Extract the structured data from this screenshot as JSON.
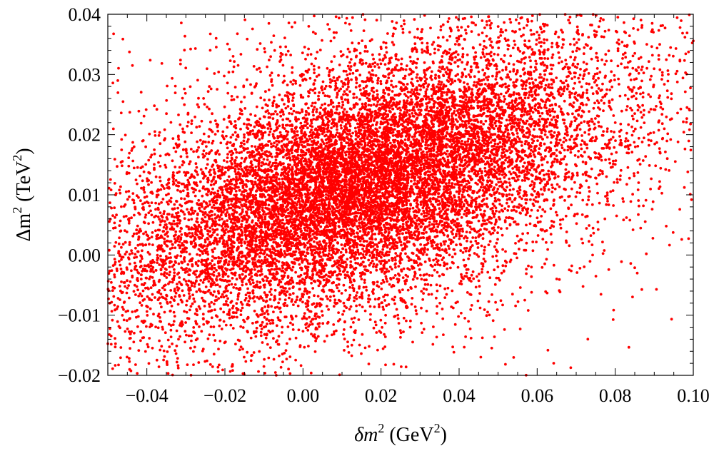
{
  "chart_data": {
    "type": "scatter",
    "title": "",
    "xlabel": {
      "base": "δm",
      "sup": "2",
      "unit_open": " (GeV",
      "unit_sup": "2",
      "unit_close": ")"
    },
    "ylabel": {
      "base": "Δm",
      "sup": "2",
      "unit_open": "  (TeV",
      "unit_sup": "2",
      "unit_close": ")"
    },
    "xlim": [
      -0.05,
      0.1
    ],
    "ylim": [
      -0.02,
      0.04
    ],
    "x_ticks": [
      -0.04,
      -0.02,
      0.0,
      0.02,
      0.04,
      0.06,
      0.08,
      0.1
    ],
    "x_tick_labels": [
      "−0.04",
      "−0.02",
      "0.00",
      "0.02",
      "0.04",
      "0.06",
      "0.08",
      "0.10"
    ],
    "y_ticks": [
      -0.02,
      -0.01,
      0.0,
      0.01,
      0.02,
      0.03,
      0.04
    ],
    "y_tick_labels": [
      "−0.02",
      "−0.01",
      "0.00",
      "0.01",
      "0.02",
      "0.03",
      "0.04"
    ],
    "grid": false,
    "marker_color": "#ff0000",
    "series": [
      {
        "distribution": "dense cloud of points, positively correlated, densest core around (0.015, 0.012)",
        "center": [
          0.015,
          0.012
        ],
        "x_spread": 0.03,
        "y_spread": 0.011,
        "correlation": 0.55,
        "approx_points": 14000
      }
    ]
  }
}
